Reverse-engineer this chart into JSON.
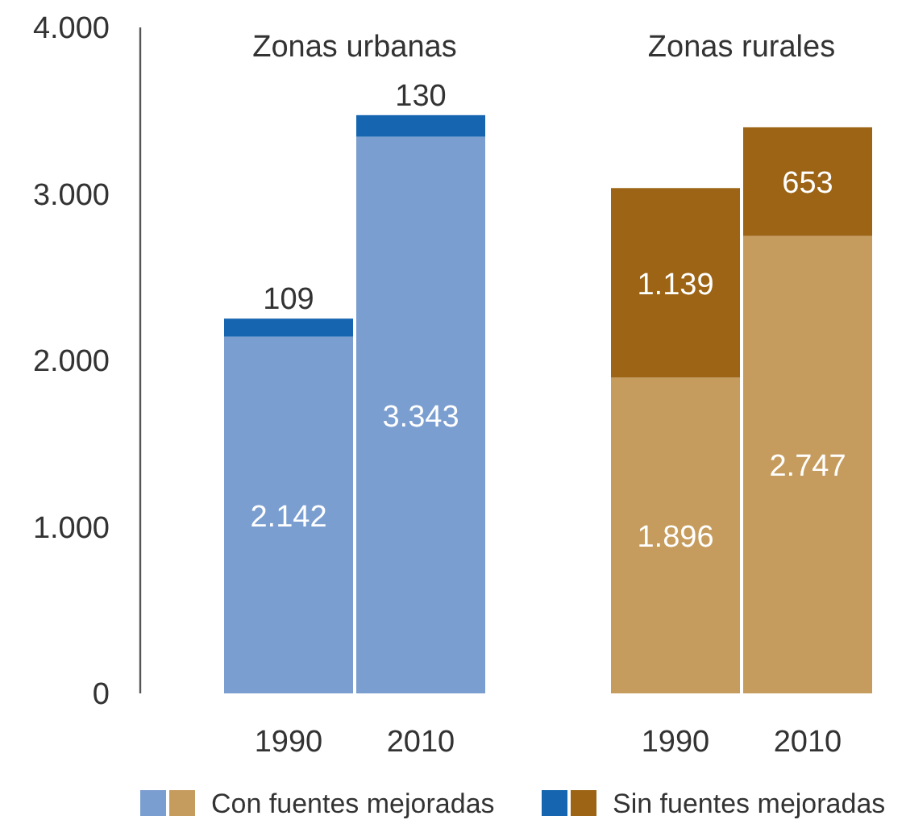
{
  "chart_data": {
    "type": "bar",
    "stacked": true,
    "categories": [
      "1990",
      "2010",
      "1990",
      "2010"
    ],
    "series": [
      {
        "name": "Con fuentes mejoradas",
        "colors": [
          "#7b9ed0",
          "#7b9ed0",
          "#c69c5e",
          "#c69c5e"
        ],
        "values": [
          2142,
          3343,
          1896,
          2747
        ],
        "value_labels": [
          "2.142",
          "3.343",
          "1.896",
          "2.747"
        ]
      },
      {
        "name": "Sin fuentes mejoradas",
        "colors": [
          "#1565b0",
          "#1565b0",
          "#9c6414",
          "#9c6414"
        ],
        "values": [
          109,
          130,
          1139,
          653
        ],
        "value_labels": [
          "109",
          "130",
          "1.139",
          "653"
        ]
      }
    ],
    "annotations": [
      "Zonas urbanas",
      "Zonas rurales"
    ],
    "ylim": [
      0,
      4000
    ],
    "yticks": [
      0,
      {
        "value": 1000,
        "label": "1.000"
      },
      {
        "value": 2000,
        "label": "2.000"
      },
      {
        "value": 3000,
        "label": "3.000"
      },
      {
        "value": 4000,
        "label": "4.000"
      }
    ],
    "grid": false,
    "legend": "bottom"
  }
}
